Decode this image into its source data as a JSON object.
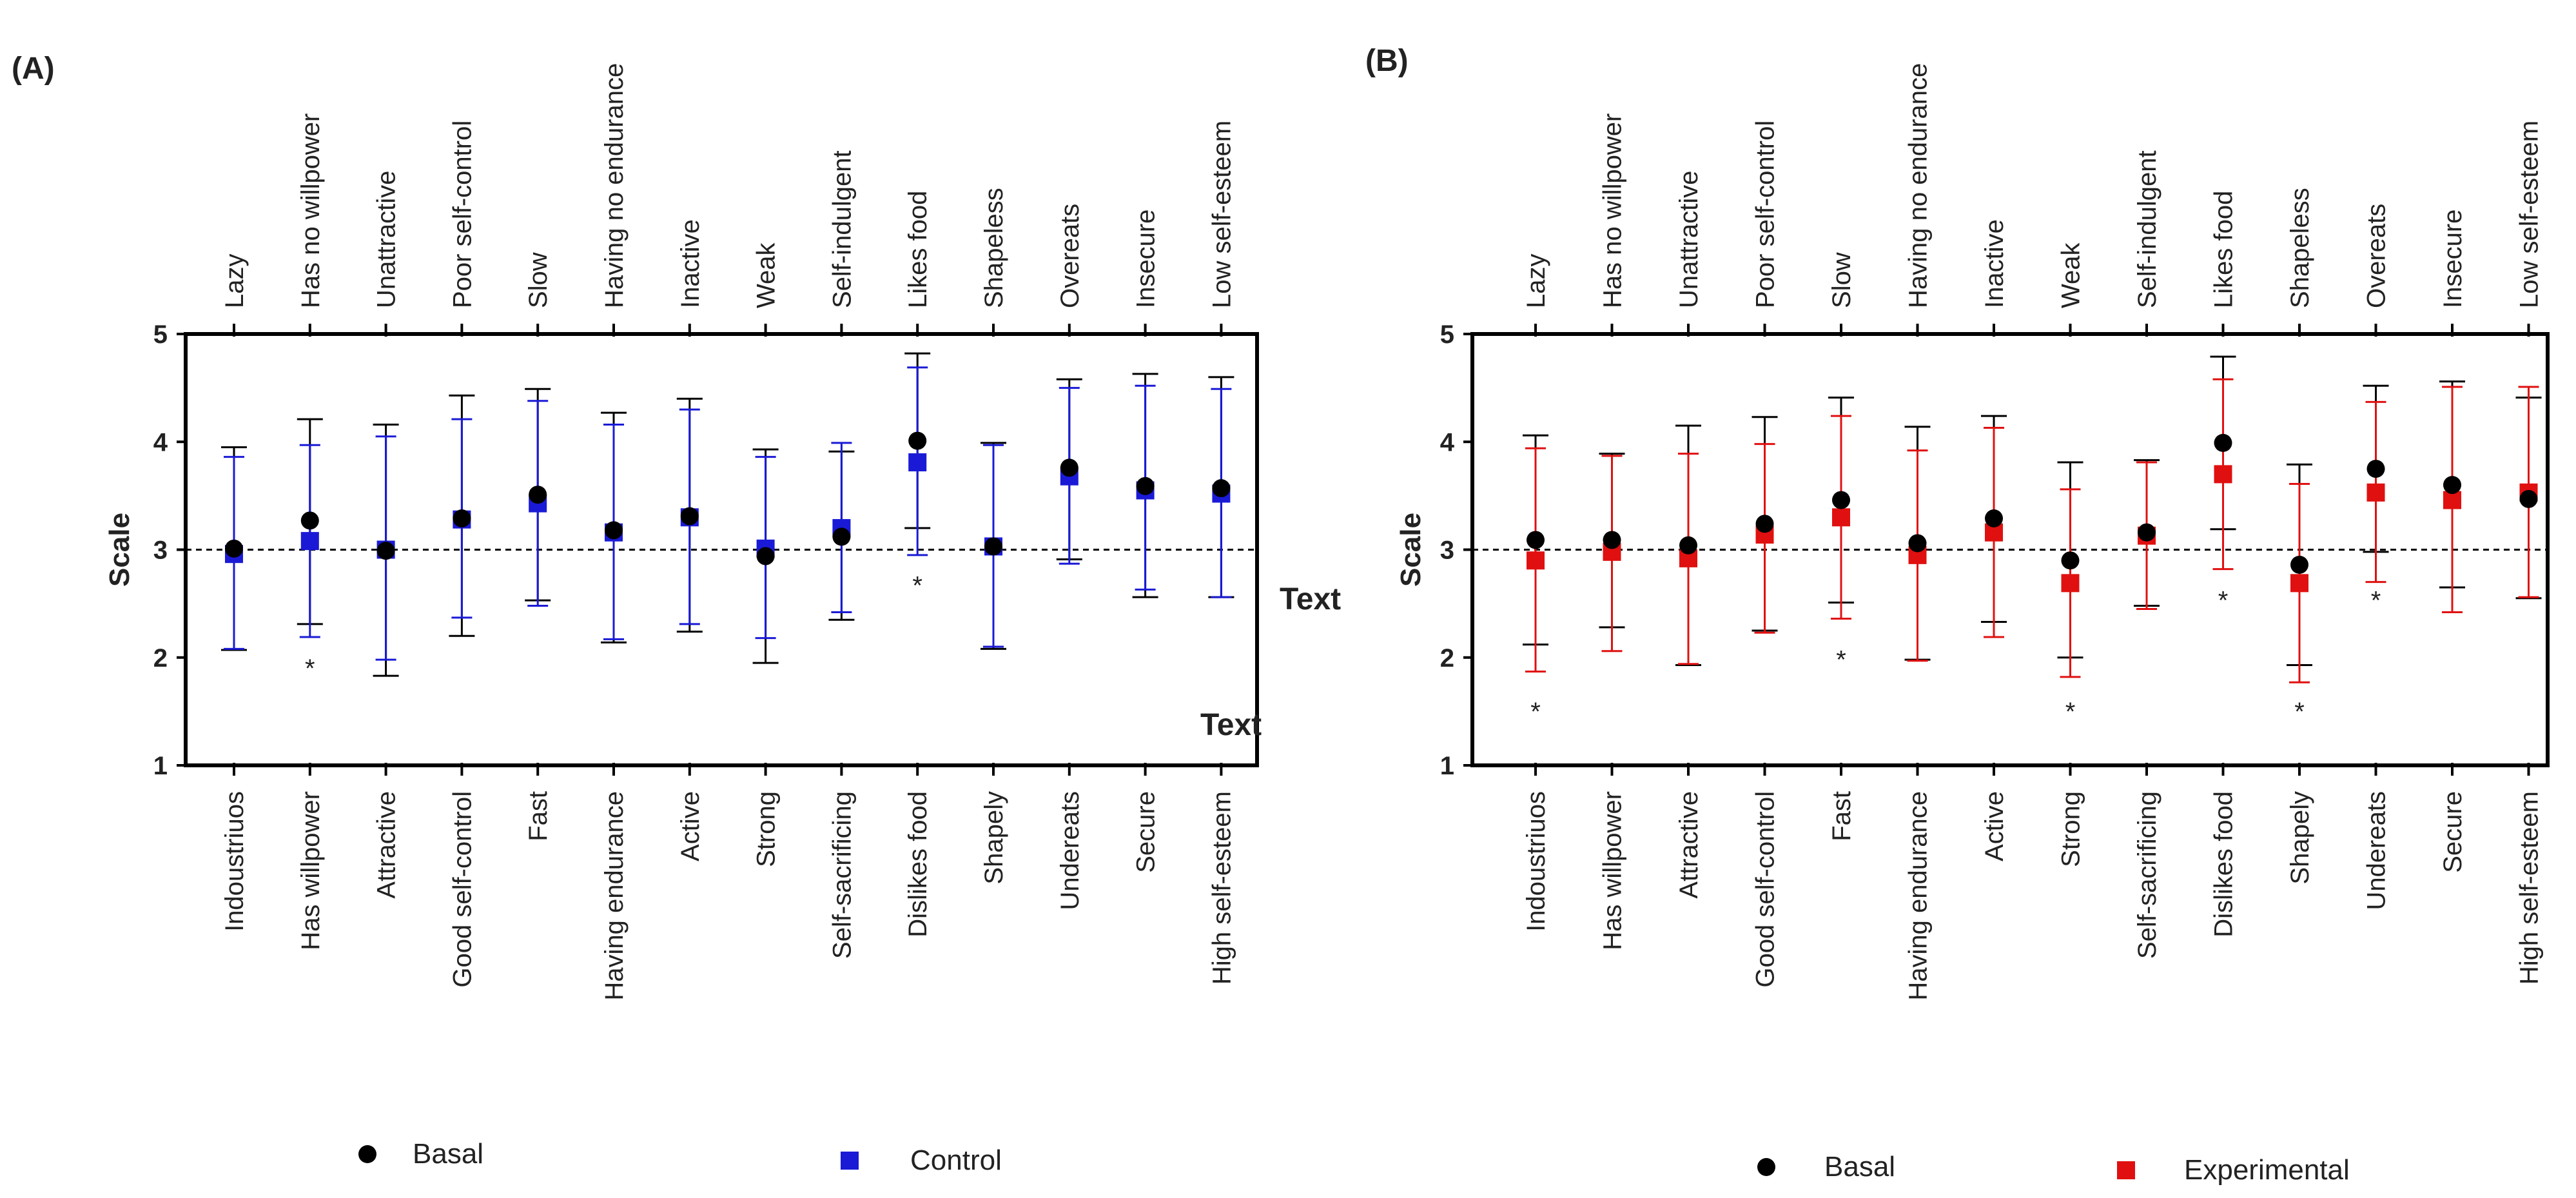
{
  "chart_data": [
    {
      "panel": "(A)",
      "type": "scatter",
      "title": "",
      "ylabel": "Scale",
      "ylim": [
        1,
        5
      ],
      "yticks": [
        "1",
        "2",
        "3",
        "4",
        "5"
      ],
      "reference_line": 3,
      "top_categories": [
        "Lazy",
        "Has no willpower",
        "Unattractive",
        "Poor self-control",
        "Slow",
        "Having no endurance",
        "Inactive",
        "Weak",
        "Self-indulgent",
        "Likes food",
        "Shapeless",
        "Overeats",
        "Insecure",
        "Low self-esteem"
      ],
      "bottom_categories": [
        "Indoustriuos",
        "Has willpower",
        "Attractive",
        "Good self-control",
        "Fast",
        "Having endurance",
        "Active",
        "Strong",
        "Self-sacrificing",
        "Dislikes food",
        "Shapely",
        "Undereats",
        "Secure",
        "High self-esteem"
      ],
      "series": [
        {
          "name": "Basal",
          "color": "#000000",
          "marker": "circle",
          "values": [
            3.01,
            3.27,
            2.99,
            3.29,
            3.51,
            3.18,
            3.31,
            2.94,
            3.12,
            4.01,
            3.03,
            3.76,
            3.59,
            3.57
          ],
          "lower": [
            2.07,
            2.31,
            1.83,
            2.2,
            2.53,
            2.14,
            2.24,
            1.95,
            2.35,
            3.2,
            2.08,
            2.91,
            2.56,
            2.56
          ],
          "upper": [
            3.95,
            4.21,
            4.16,
            4.43,
            4.49,
            4.27,
            4.4,
            3.93,
            3.91,
            4.82,
            3.99,
            4.58,
            4.63,
            4.6
          ]
        },
        {
          "name": "Control",
          "color": "#1a1ad6",
          "marker": "square",
          "values": [
            2.96,
            3.08,
            3.0,
            3.28,
            3.43,
            3.16,
            3.3,
            3.01,
            3.2,
            3.81,
            3.03,
            3.68,
            3.55,
            3.52
          ],
          "lower": [
            2.08,
            2.19,
            1.98,
            2.37,
            2.48,
            2.17,
            2.31,
            2.18,
            2.42,
            2.95,
            2.1,
            2.87,
            2.63,
            2.56
          ],
          "upper": [
            3.86,
            3.97,
            4.05,
            4.21,
            4.38,
            4.16,
            4.3,
            3.86,
            3.99,
            4.69,
            3.97,
            4.5,
            4.52,
            4.49
          ]
        }
      ],
      "significance": [
        {
          "index": 1,
          "value": 1.95,
          "label": "*"
        },
        {
          "index": 9,
          "value": 2.72,
          "label": "*"
        }
      ],
      "annotations": [
        "Text",
        "Text"
      ],
      "legend": [
        "Basal",
        "Control"
      ]
    },
    {
      "panel": "(B)",
      "type": "scatter",
      "title": "",
      "ylabel": "Scale",
      "ylim": [
        1,
        5
      ],
      "yticks": [
        "1",
        "2",
        "3",
        "4",
        "5"
      ],
      "reference_line": 3,
      "top_categories": [
        "Lazy",
        "Has no willpower",
        "Unattractive",
        "Poor self-control",
        "Slow",
        "Having no endurance",
        "Inactive",
        "Weak",
        "Self-indulgent",
        "Likes food",
        "Shapeless",
        "Overeats",
        "Insecure",
        "Low self-esteem"
      ],
      "bottom_categories": [
        "Indoustriuos",
        "Has willpower",
        "Attractive",
        "Good self-control",
        "Fast",
        "Having endurance",
        "Active",
        "Strong",
        "Self-sacrificing",
        "Dislikes food",
        "Shapely",
        "Undereats",
        "Secure",
        "High self-esteem"
      ],
      "series": [
        {
          "name": "Basal",
          "color": "#000000",
          "marker": "circle",
          "values": [
            3.09,
            3.09,
            3.04,
            3.24,
            3.46,
            3.06,
            3.29,
            2.9,
            3.16,
            3.99,
            2.86,
            3.75,
            3.6,
            3.47
          ],
          "lower": [
            2.12,
            2.28,
            1.93,
            2.25,
            2.51,
            1.98,
            2.33,
            2.0,
            2.48,
            3.19,
            1.93,
            2.98,
            2.65,
            2.55
          ],
          "upper": [
            4.06,
            3.89,
            4.15,
            4.23,
            4.41,
            4.14,
            4.24,
            3.81,
            3.83,
            4.79,
            3.79,
            4.52,
            4.56,
            4.41
          ]
        },
        {
          "name": "Experimental",
          "color": "#e01010",
          "marker": "square",
          "values": [
            2.9,
            2.98,
            2.92,
            3.14,
            3.3,
            2.95,
            3.16,
            2.69,
            3.13,
            3.7,
            2.69,
            3.53,
            3.46,
            3.53
          ],
          "lower": [
            1.87,
            2.06,
            1.94,
            2.23,
            2.36,
            1.97,
            2.19,
            1.82,
            2.45,
            2.82,
            1.77,
            2.7,
            2.42,
            2.56
          ],
          "upper": [
            3.94,
            3.87,
            3.89,
            3.98,
            4.24,
            3.92,
            4.13,
            3.56,
            3.81,
            4.58,
            3.61,
            4.37,
            4.51,
            4.51
          ]
        }
      ],
      "significance": [
        {
          "index": 0,
          "value": 1.55,
          "label": "*"
        },
        {
          "index": 4,
          "value": 2.03,
          "label": "*"
        },
        {
          "index": 7,
          "value": 1.55,
          "label": "*"
        },
        {
          "index": 9,
          "value": 2.58,
          "label": "*"
        },
        {
          "index": 10,
          "value": 1.55,
          "label": "*"
        },
        {
          "index": 11,
          "value": 2.58,
          "label": "*"
        }
      ],
      "annotations": [],
      "legend": [
        "Basal",
        "Experimental"
      ]
    }
  ]
}
